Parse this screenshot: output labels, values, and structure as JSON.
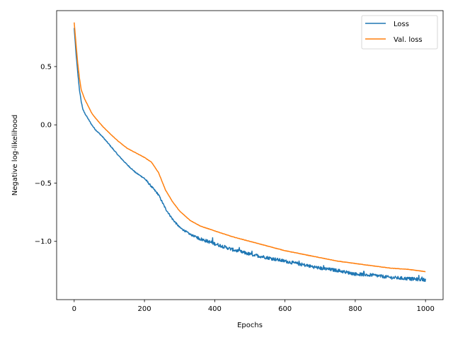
{
  "chart_data": {
    "type": "line",
    "title": "",
    "xlabel": "Epochs",
    "ylabel": "Negative log-likelihood",
    "xlim": [
      -50,
      1050
    ],
    "ylim": [
      -1.5,
      0.98
    ],
    "xticks": [
      0,
      200,
      400,
      600,
      800,
      1000
    ],
    "xtick_labels": [
      "0",
      "200",
      "400",
      "600",
      "800",
      "1000"
    ],
    "yticks": [
      0.5,
      0.0,
      -0.5,
      -1.0
    ],
    "ytick_labels": [
      "0.5",
      "0.0",
      "−0.5",
      "−1.0"
    ],
    "grid": false,
    "legend_position": "top-right",
    "series": [
      {
        "name": "Loss",
        "color": "#1f77b4",
        "noisy": true,
        "x": [
          0,
          5,
          10,
          15,
          20,
          25,
          30,
          40,
          50,
          60,
          80,
          100,
          125,
          150,
          175,
          200,
          220,
          240,
          260,
          280,
          300,
          330,
          360,
          400,
          450,
          500,
          550,
          600,
          650,
          700,
          750,
          800,
          850,
          900,
          950,
          1000
        ],
        "y": [
          0.83,
          0.62,
          0.45,
          0.3,
          0.2,
          0.13,
          0.1,
          0.05,
          0.0,
          -0.04,
          -0.1,
          -0.17,
          -0.26,
          -0.34,
          -0.41,
          -0.46,
          -0.53,
          -0.6,
          -0.72,
          -0.81,
          -0.88,
          -0.94,
          -0.98,
          -1.02,
          -1.07,
          -1.11,
          -1.14,
          -1.17,
          -1.2,
          -1.23,
          -1.25,
          -1.28,
          -1.29,
          -1.31,
          -1.32,
          -1.33
        ]
      },
      {
        "name": "Val. loss",
        "color": "#ff7f0e",
        "noisy": false,
        "x": [
          0,
          5,
          10,
          15,
          20,
          25,
          30,
          40,
          50,
          60,
          80,
          100,
          125,
          150,
          175,
          200,
          220,
          240,
          260,
          280,
          300,
          330,
          360,
          400,
          450,
          500,
          550,
          600,
          650,
          700,
          750,
          800,
          850,
          900,
          950,
          1000
        ],
        "y": [
          0.88,
          0.7,
          0.53,
          0.4,
          0.3,
          0.26,
          0.22,
          0.16,
          0.1,
          0.06,
          -0.01,
          -0.07,
          -0.14,
          -0.2,
          -0.24,
          -0.28,
          -0.32,
          -0.41,
          -0.56,
          -0.66,
          -0.74,
          -0.82,
          -0.87,
          -0.91,
          -0.96,
          -1.0,
          -1.04,
          -1.08,
          -1.11,
          -1.14,
          -1.17,
          -1.19,
          -1.21,
          -1.23,
          -1.24,
          -1.26
        ]
      }
    ]
  }
}
